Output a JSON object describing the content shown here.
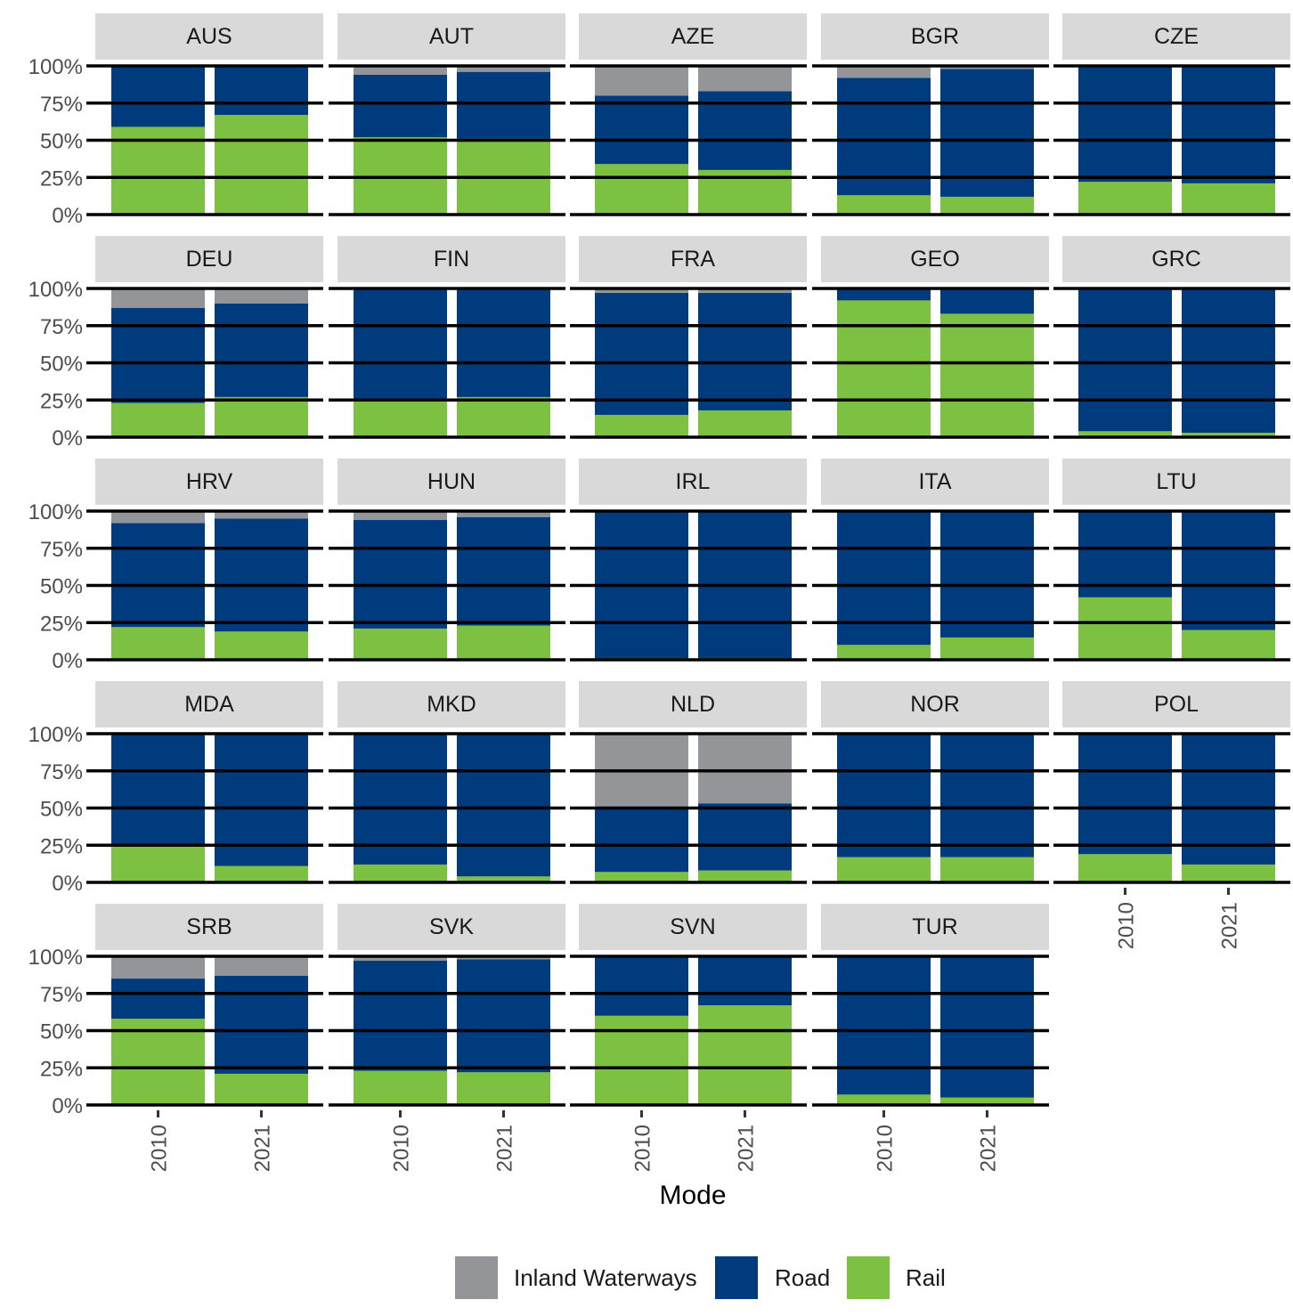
{
  "chart_data": {
    "type": "bar",
    "stacked": true,
    "facet_layout": "5 columns x 5 rows",
    "xlabel": "Mode",
    "ylabel": "",
    "ylim": [
      0,
      1
    ],
    "y_ticks": [
      "0%",
      "25%",
      "50%",
      "75%",
      "100%"
    ],
    "categories": [
      "2010",
      "2021"
    ],
    "legend_position": "bottom",
    "series": [
      {
        "name": "Inland Waterways",
        "color": "#939598"
      },
      {
        "name": "Road",
        "color": "#003c7d"
      },
      {
        "name": "Rail",
        "color": "#7dc142"
      }
    ],
    "stack_order_bottom_to_top": [
      "Rail",
      "Road",
      "Inland Waterways"
    ],
    "panels": [
      {
        "label": "AUS",
        "rail": [
          0.59,
          0.67
        ],
        "road": [
          0.41,
          0.33
        ],
        "inland_waterways": [
          0.0,
          0.0
        ]
      },
      {
        "label": "AUT",
        "rail": [
          0.52,
          0.51
        ],
        "road": [
          0.42,
          0.45
        ],
        "inland_waterways": [
          0.06,
          0.04
        ]
      },
      {
        "label": "AZE",
        "rail": [
          0.34,
          0.3
        ],
        "road": [
          0.46,
          0.53
        ],
        "inland_waterways": [
          0.2,
          0.17
        ]
      },
      {
        "label": "BGR",
        "rail": [
          0.13,
          0.12
        ],
        "road": [
          0.79,
          0.86
        ],
        "inland_waterways": [
          0.08,
          0.02
        ]
      },
      {
        "label": "CZE",
        "rail": [
          0.22,
          0.21
        ],
        "road": [
          0.78,
          0.79
        ],
        "inland_waterways": [
          0.0,
          0.0
        ]
      },
      {
        "label": "DEU",
        "rail": [
          0.23,
          0.27
        ],
        "road": [
          0.64,
          0.63
        ],
        "inland_waterways": [
          0.13,
          0.1
        ]
      },
      {
        "label": "FIN",
        "rail": [
          0.25,
          0.27
        ],
        "road": [
          0.75,
          0.73
        ],
        "inland_waterways": [
          0.0,
          0.0
        ]
      },
      {
        "label": "FRA",
        "rail": [
          0.15,
          0.18
        ],
        "road": [
          0.82,
          0.79
        ],
        "inland_waterways": [
          0.03,
          0.03
        ]
      },
      {
        "label": "GEO",
        "rail": [
          0.92,
          0.83
        ],
        "road": [
          0.08,
          0.17
        ],
        "inland_waterways": [
          0.0,
          0.0
        ]
      },
      {
        "label": "GRC",
        "rail": [
          0.04,
          0.03
        ],
        "road": [
          0.96,
          0.97
        ],
        "inland_waterways": [
          0.0,
          0.0
        ]
      },
      {
        "label": "HRV",
        "rail": [
          0.22,
          0.19
        ],
        "road": [
          0.7,
          0.76
        ],
        "inland_waterways": [
          0.08,
          0.05
        ]
      },
      {
        "label": "HUN",
        "rail": [
          0.21,
          0.23
        ],
        "road": [
          0.73,
          0.73
        ],
        "inland_waterways": [
          0.06,
          0.04
        ]
      },
      {
        "label": "IRL",
        "rail": [
          0.01,
          0.01
        ],
        "road": [
          0.99,
          0.99
        ],
        "inland_waterways": [
          0.0,
          0.0
        ]
      },
      {
        "label": "ITA",
        "rail": [
          0.1,
          0.15
        ],
        "road": [
          0.9,
          0.85
        ],
        "inland_waterways": [
          0.0,
          0.0
        ]
      },
      {
        "label": "LTU",
        "rail": [
          0.42,
          0.2
        ],
        "road": [
          0.58,
          0.8
        ],
        "inland_waterways": [
          0.0,
          0.0
        ]
      },
      {
        "label": "MDA",
        "rail": [
          0.24,
          0.11
        ],
        "road": [
          0.76,
          0.89
        ],
        "inland_waterways": [
          0.0,
          0.0
        ]
      },
      {
        "label": "MKD",
        "rail": [
          0.12,
          0.04
        ],
        "road": [
          0.88,
          0.96
        ],
        "inland_waterways": [
          0.0,
          0.0
        ]
      },
      {
        "label": "NLD",
        "rail": [
          0.07,
          0.08
        ],
        "road": [
          0.43,
          0.45
        ],
        "inland_waterways": [
          0.5,
          0.47
        ]
      },
      {
        "label": "NOR",
        "rail": [
          0.17,
          0.17
        ],
        "road": [
          0.83,
          0.83
        ],
        "inland_waterways": [
          0.0,
          0.0
        ]
      },
      {
        "label": "POL",
        "rail": [
          0.19,
          0.12
        ],
        "road": [
          0.81,
          0.88
        ],
        "inland_waterways": [
          0.0,
          0.0
        ]
      },
      {
        "label": "SRB",
        "rail": [
          0.58,
          0.21
        ],
        "road": [
          0.27,
          0.66
        ],
        "inland_waterways": [
          0.15,
          0.13
        ]
      },
      {
        "label": "SVK",
        "rail": [
          0.23,
          0.22
        ],
        "road": [
          0.74,
          0.76
        ],
        "inland_waterways": [
          0.03,
          0.02
        ]
      },
      {
        "label": "SVN",
        "rail": [
          0.6,
          0.67
        ],
        "road": [
          0.4,
          0.33
        ],
        "inland_waterways": [
          0.0,
          0.0
        ]
      },
      {
        "label": "TUR",
        "rail": [
          0.07,
          0.05
        ],
        "road": [
          0.93,
          0.95
        ],
        "inland_waterways": [
          0.0,
          0.0
        ]
      }
    ]
  }
}
